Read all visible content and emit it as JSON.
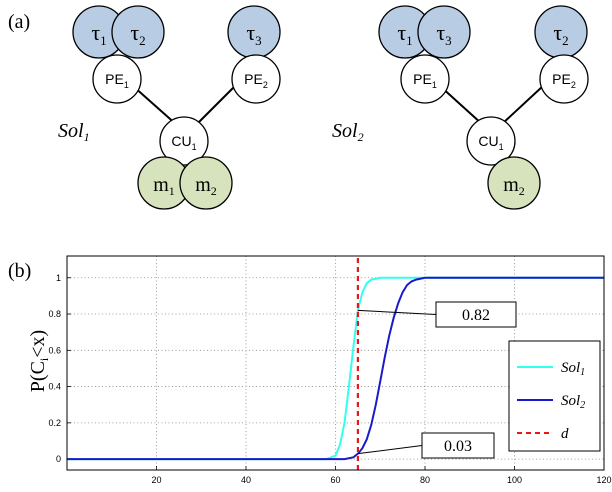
{
  "panel_a": {
    "label": "(a)",
    "solutions": [
      {
        "name": "Sol",
        "name_sub": "1",
        "tasks": [
          {
            "sym": "τ",
            "sub": "1"
          },
          {
            "sym": "τ",
            "sub": "2"
          },
          {
            "sym": "τ",
            "sub": "3"
          }
        ],
        "pes": [
          {
            "text": "PE",
            "sub": "1"
          },
          {
            "text": "PE",
            "sub": "2"
          }
        ],
        "cu": {
          "text": "CU",
          "sub": "1"
        },
        "mems": [
          {
            "text": "m",
            "sub": "1"
          },
          {
            "text": "m",
            "sub": "2"
          }
        ]
      },
      {
        "name": "Sol",
        "name_sub": "2",
        "tasks": [
          {
            "sym": "τ",
            "sub": "1"
          },
          {
            "sym": "τ",
            "sub": "3"
          },
          {
            "sym": "τ",
            "sub": "2"
          }
        ],
        "pes": [
          {
            "text": "PE",
            "sub": "1"
          },
          {
            "text": "PE",
            "sub": "2"
          }
        ],
        "cu": {
          "text": "CU",
          "sub": "1"
        },
        "mems": [
          {
            "text": "m",
            "sub": "2"
          }
        ]
      }
    ]
  },
  "colors": {
    "task_fill": "#b8cce4",
    "mem_fill": "#d6e3bc",
    "node_stroke": "#000000",
    "sol1": "#33ffee",
    "sol2": "#1a1acc",
    "deadline": "#e81818"
  },
  "chart_data": {
    "type": "line",
    "panel_label": "(b)",
    "ylabel": "P(C",
    "ylabel_sub": "i",
    "ylabel_end": "<x)",
    "xlim": [
      0,
      120
    ],
    "ylim": [
      -0.06,
      1.12
    ],
    "xticks": [
      20,
      40,
      60,
      80,
      100,
      120
    ],
    "yticks": [
      0,
      0.2,
      0.4,
      0.6,
      0.8,
      1
    ],
    "grid": true,
    "legend_position": "bottom-right",
    "series": [
      {
        "name": "Sol",
        "name_sub": "1",
        "style": "solid",
        "x": [
          0,
          58,
          60,
          61,
          62,
          63,
          64,
          65,
          66,
          67,
          68,
          70,
          72,
          120
        ],
        "y": [
          0,
          0,
          0.02,
          0.08,
          0.2,
          0.4,
          0.62,
          0.82,
          0.92,
          0.97,
          0.99,
          1,
          1,
          1
        ]
      },
      {
        "name": "Sol",
        "name_sub": "2",
        "style": "solid",
        "x": [
          0,
          62,
          64,
          65,
          66,
          67,
          68,
          69,
          70,
          71,
          72,
          73,
          74,
          75,
          76,
          77,
          78,
          80,
          120
        ],
        "y": [
          0,
          0,
          0.01,
          0.03,
          0.06,
          0.11,
          0.19,
          0.3,
          0.43,
          0.56,
          0.68,
          0.78,
          0.86,
          0.92,
          0.96,
          0.98,
          0.99,
          1,
          1
        ]
      },
      {
        "name": "d",
        "style": "dashed",
        "x": [
          65,
          65
        ],
        "y": [
          -0.06,
          1.12
        ]
      }
    ],
    "annotations": [
      {
        "text": "0.82",
        "x": 65,
        "y": 0.82
      },
      {
        "text": "0.03",
        "x": 65,
        "y": 0.03
      }
    ]
  }
}
